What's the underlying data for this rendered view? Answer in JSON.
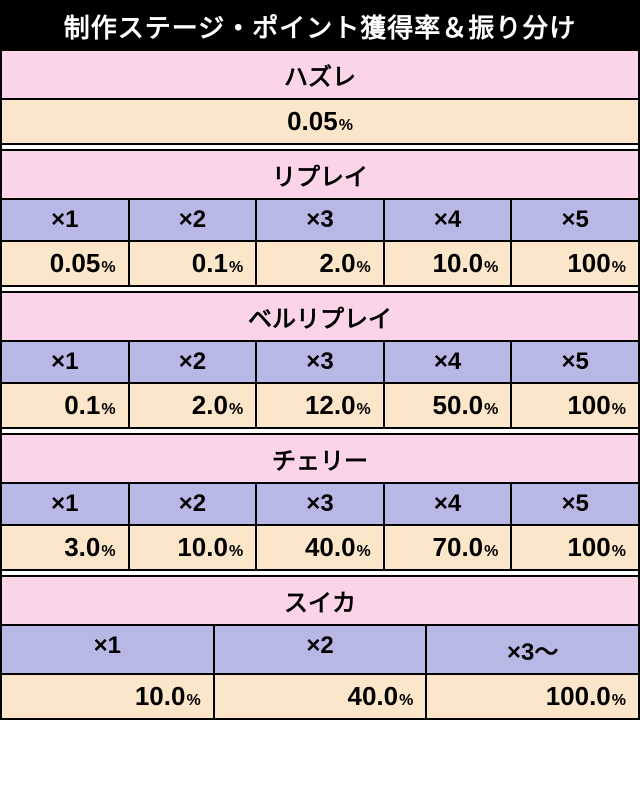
{
  "title": "制作ステージ・ポイント獲得率＆振り分け",
  "colors": {
    "pink": "#fbd4ea",
    "purple": "#b7b8e5",
    "beige": "#fce6ca",
    "black": "#000000",
    "white": "#ffffff"
  },
  "fonts": {
    "title_size": 26,
    "header_size": 24,
    "value_size": 26,
    "pct_size": 16,
    "mult_size": 24
  },
  "sections": [
    {
      "name": "ハズレ",
      "type": "single",
      "value": "0.05"
    },
    {
      "name": "リプレイ",
      "type": "five",
      "multipliers": [
        "×1",
        "×2",
        "×3",
        "×4",
        "×5"
      ],
      "values": [
        "0.05",
        "0.1",
        "2.0",
        "10.0",
        "100"
      ]
    },
    {
      "name": "ベルリプレイ",
      "type": "five",
      "multipliers": [
        "×1",
        "×2",
        "×3",
        "×4",
        "×5"
      ],
      "values": [
        "0.1",
        "2.0",
        "12.0",
        "50.0",
        "100"
      ]
    },
    {
      "name": "チェリー",
      "type": "five",
      "multipliers": [
        "×1",
        "×2",
        "×3",
        "×4",
        "×5"
      ],
      "values": [
        "3.0",
        "10.0",
        "40.0",
        "70.0",
        "100"
      ]
    },
    {
      "name": "スイカ",
      "type": "three",
      "multipliers": [
        "×1",
        "×2",
        "×3～"
      ],
      "values": [
        "10.0",
        "40.0",
        "100.0"
      ]
    }
  ]
}
